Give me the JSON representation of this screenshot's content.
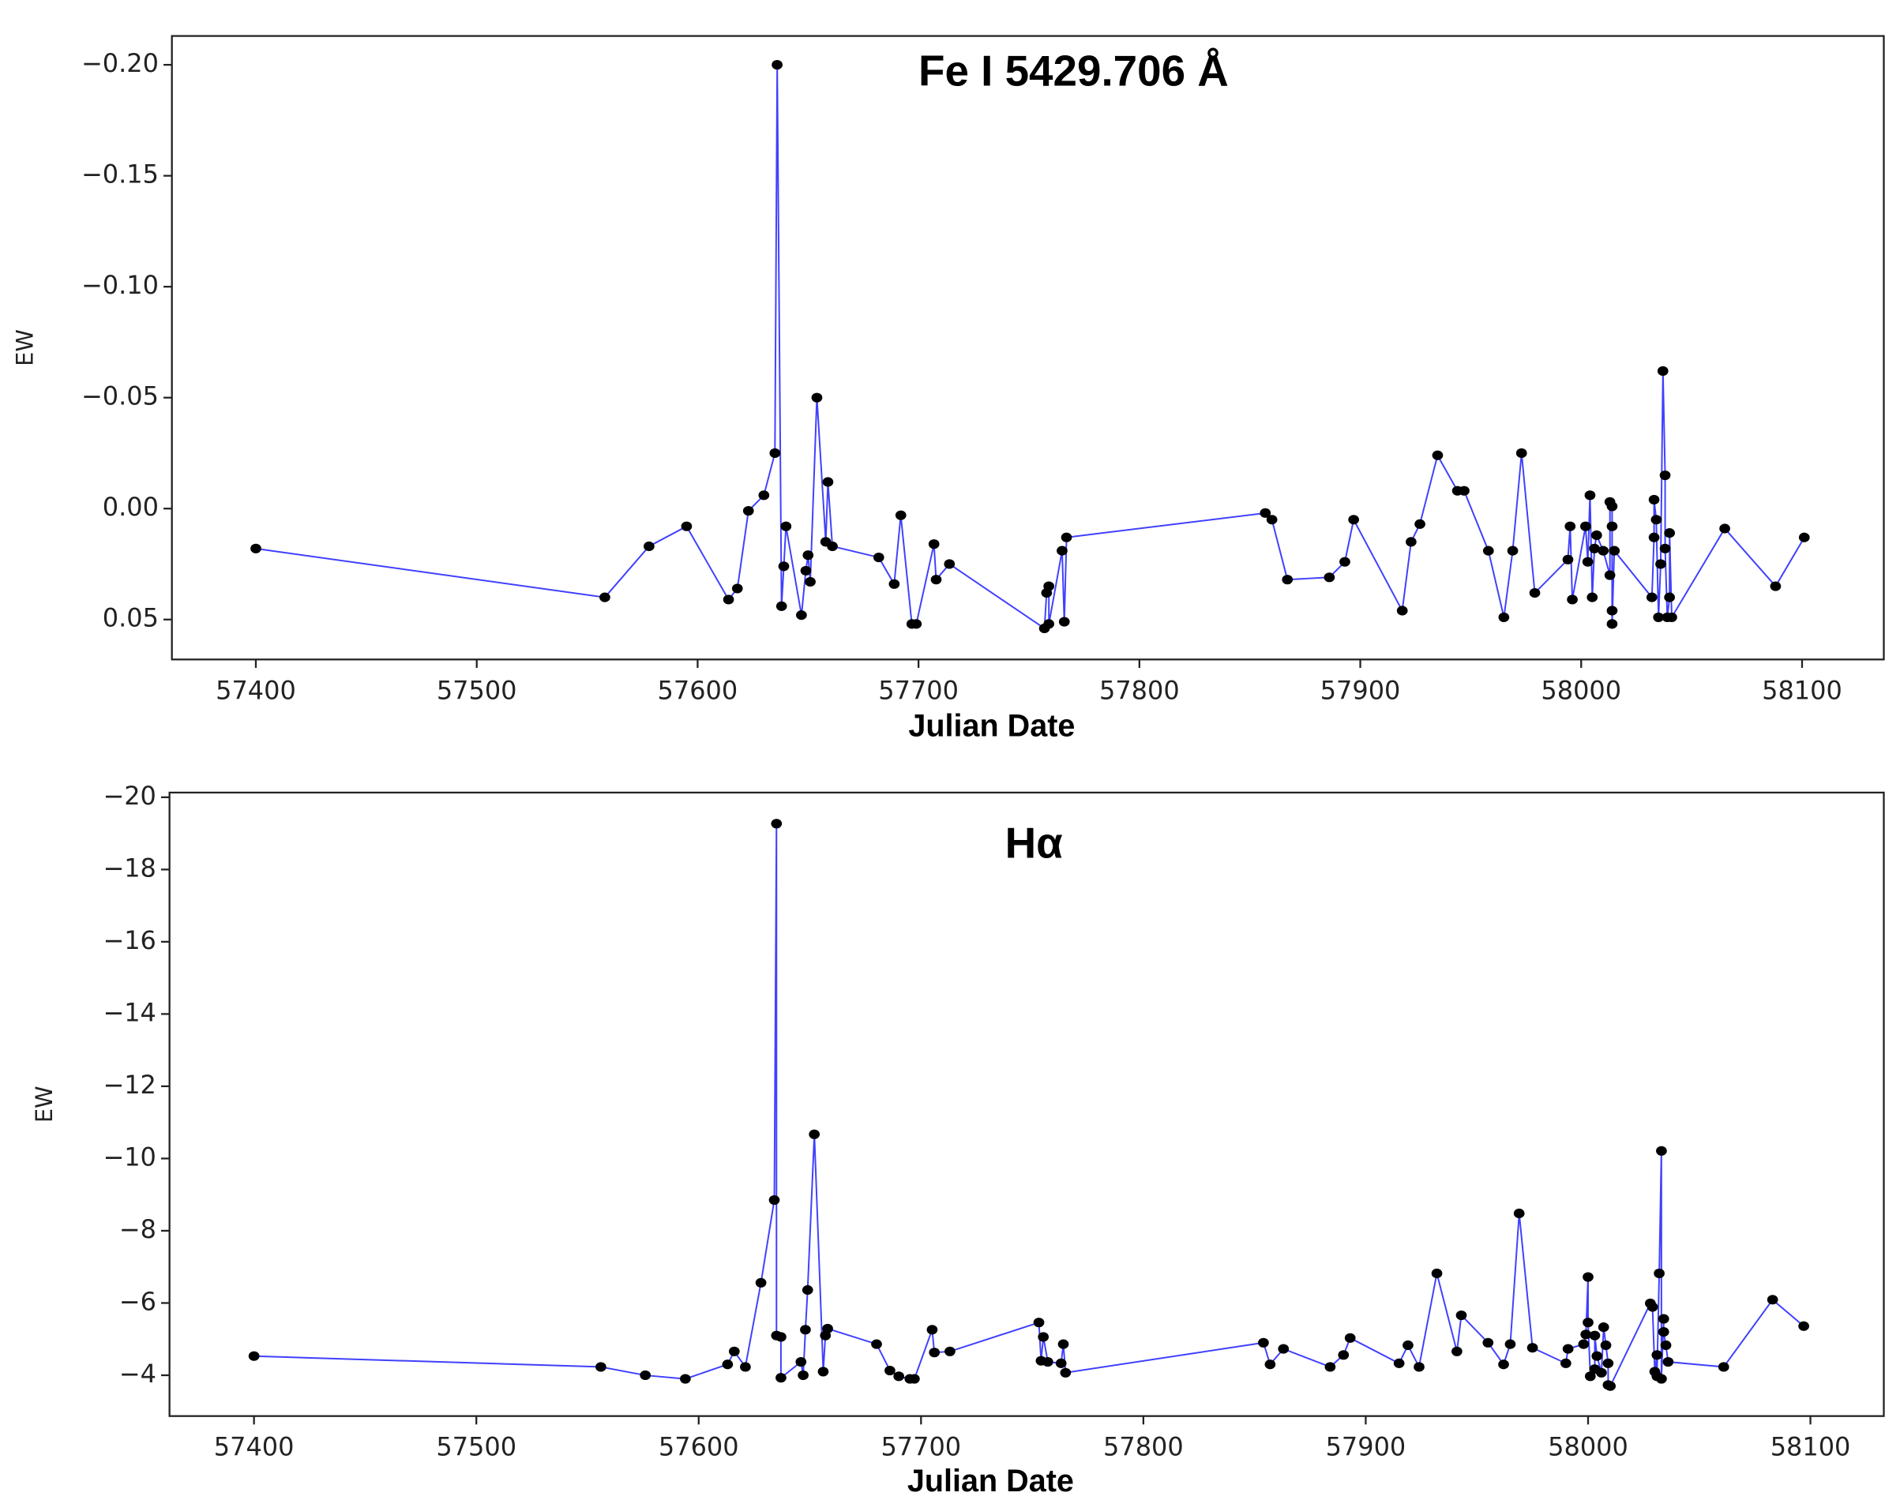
{
  "chart_data": [
    {
      "type": "line",
      "title": "Fe I 5429.706 Å",
      "xlabel": "Julian Date",
      "ylabel": "EW",
      "color": "#4040ff",
      "marker_color": "#000000",
      "xlim": [
        57362,
        58137
      ],
      "xticks": [
        57400,
        57500,
        57600,
        57700,
        57800,
        57900,
        58000,
        58100
      ],
      "ylim": [
        0.068,
        -0.213
      ],
      "yticks": [
        {
          "value": -0.2,
          "label": "−0.20"
        },
        {
          "value": -0.15,
          "label": "−0.15"
        },
        {
          "value": -0.1,
          "label": "−0.10"
        },
        {
          "value": -0.05,
          "label": "−0.05"
        },
        {
          "value": 0,
          "label": "0.00"
        },
        0.05
      ],
      "x": [
        57400,
        57558,
        57578,
        57595,
        57614,
        57618,
        57623,
        57630,
        57635,
        57636,
        57638,
        57639,
        57640,
        57647,
        57649,
        57650,
        57651,
        57654,
        57658,
        57659,
        57661,
        57682,
        57689,
        57692,
        57697,
        57699,
        57707,
        57708,
        57714,
        57757,
        57758,
        57759,
        57759,
        57765,
        57766,
        57767,
        57857,
        57860,
        57867,
        57886,
        57893,
        57897,
        57919,
        57923,
        57927,
        57935,
        57944,
        57947,
        57958,
        57965,
        57969,
        57973,
        57979,
        57994,
        57995,
        57996,
        58002,
        58003,
        58004,
        58005,
        58006,
        58007,
        58010,
        58013,
        58013,
        58014,
        58014,
        58014,
        58014,
        58015,
        58032,
        58033,
        58033,
        58034,
        58035,
        58036,
        58037,
        58038,
        58038,
        58039,
        58040,
        58040,
        58041,
        58065,
        58088,
        58101
      ],
      "values": [
        0.018,
        0.04,
        0.017,
        0.008,
        0.041,
        0.036,
        0.001,
        -0.006,
        -0.025,
        -0.2,
        0.044,
        0.026,
        0.008,
        0.048,
        0.028,
        0.021,
        0.033,
        -0.05,
        0.015,
        -0.012,
        0.017,
        0.022,
        0.034,
        0.003,
        0.052,
        0.052,
        0.016,
        0.032,
        0.025,
        0.054,
        0.038,
        0.035,
        0.052,
        0.019,
        0.051,
        0.013,
        0.002,
        0.005,
        0.032,
        0.031,
        0.024,
        0.005,
        0.046,
        0.015,
        0.007,
        -0.024,
        -0.008,
        -0.008,
        0.019,
        0.049,
        0.019,
        -0.025,
        0.038,
        0.023,
        0.008,
        0.041,
        0.008,
        0.024,
        -0.006,
        0.04,
        0.018,
        0.012,
        0.019,
        0.03,
        -0.003,
        -0.001,
        0.046,
        0.008,
        0.052,
        0.019,
        0.04,
        0.013,
        -0.004,
        0.005,
        0.049,
        0.025,
        -0.062,
        -0.015,
        0.018,
        0.049,
        0.04,
        0.011,
        0.049,
        0.009,
        0.035,
        0.013
      ]
    },
    {
      "type": "line",
      "title": "Hα",
      "xlabel": "Julian Date",
      "ylabel": "EW",
      "color": "#4040ff",
      "marker_color": "#000000",
      "xlim": [
        57362,
        58133
      ],
      "xticks": [
        57400,
        57500,
        57600,
        57700,
        57800,
        57900,
        58000,
        58100
      ],
      "ylim": [
        -2.87,
        -20.13
      ],
      "yticks": [
        {
          "value": -20,
          "label": "−20"
        },
        {
          "value": -18,
          "label": "−18"
        },
        {
          "value": -16,
          "label": "−16"
        },
        {
          "value": -14,
          "label": "−14"
        },
        {
          "value": -12,
          "label": "−12"
        },
        {
          "value": -10,
          "label": "−10"
        },
        {
          "value": -8,
          "label": "−8"
        },
        {
          "value": -6,
          "label": "−6"
        },
        {
          "value": -4,
          "label": "−4"
        }
      ],
      "x": [
        57400,
        57556,
        57576,
        57594,
        57613,
        57616,
        57621,
        57628,
        57634,
        57635,
        57635,
        57637,
        57637,
        57646,
        57647,
        57648,
        57649,
        57652,
        57656,
        57657,
        57658,
        57680,
        57686,
        57690,
        57695,
        57697,
        57705,
        57706,
        57713,
        57753,
        57754,
        57755,
        57757,
        57763,
        57764,
        57765,
        57854,
        57857,
        57863,
        57884,
        57890,
        57893,
        57915,
        57919,
        57924,
        57932,
        57941,
        57943,
        57955,
        57962,
        57965,
        57969,
        57975,
        57990,
        57991,
        57998,
        57999,
        58000,
        58000,
        58001,
        58003,
        58003,
        58004,
        58006,
        58007,
        58008,
        58009,
        58009,
        58010,
        58028,
        58029,
        58030,
        58031,
        58031,
        58032,
        58033,
        58033,
        58034,
        58034,
        58035,
        58036,
        58061,
        58083,
        58097
      ],
      "values": [
        -4.53,
        -4.23,
        -4.0,
        -3.9,
        -4.3,
        -4.66,
        -4.23,
        -6.56,
        -8.85,
        -19.27,
        -5.1,
        -5.06,
        -3.93,
        -4.37,
        -4.0,
        -5.26,
        -6.36,
        -10.67,
        -4.1,
        -5.1,
        -5.29,
        -4.86,
        -4.13,
        -3.97,
        -3.9,
        -3.9,
        -5.26,
        -4.63,
        -4.66,
        -5.46,
        -4.4,
        -5.06,
        -4.37,
        -4.33,
        -4.86,
        -4.07,
        -4.9,
        -4.3,
        -4.73,
        -4.23,
        -4.56,
        -5.03,
        -4.33,
        -4.83,
        -4.23,
        -6.82,
        -4.66,
        -5.66,
        -4.9,
        -4.3,
        -4.86,
        -8.48,
        -4.76,
        -4.33,
        -4.73,
        -4.86,
        -5.13,
        -6.72,
        -5.46,
        -3.97,
        -4.17,
        -5.1,
        -4.53,
        -4.07,
        -5.33,
        -4.83,
        -4.33,
        -3.73,
        -3.7,
        -5.99,
        -5.89,
        -4.1,
        -4.56,
        -3.97,
        -6.82,
        -10.21,
        -3.9,
        -5.56,
        -5.2,
        -4.83,
        -4.37,
        -4.23,
        -6.09,
        -5.36
      ]
    }
  ]
}
